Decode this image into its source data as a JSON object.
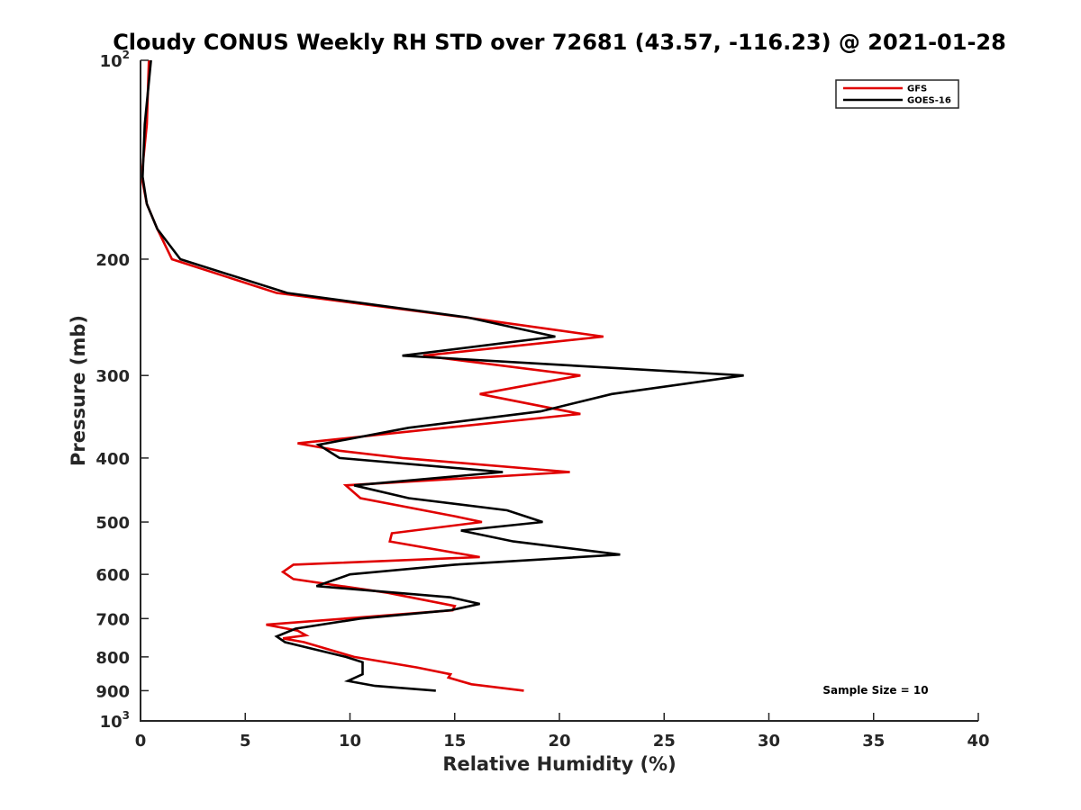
{
  "chart_data": {
    "type": "line",
    "title": "Cloudy CONUS Weekly RH STD over 72681 (43.57, -116.23) @ 2021-01-28",
    "xlabel": "Relative Humidity (%)",
    "ylabel": "Pressure (mb)",
    "xlim": [
      0,
      40
    ],
    "ylim": [
      1000,
      100
    ],
    "y_scale": "log",
    "y_reversed": true,
    "grid": false,
    "legend_position": "top-right",
    "x_ticks": [
      0,
      5,
      10,
      15,
      20,
      25,
      30,
      35,
      40
    ],
    "y_ticks": [
      {
        "value": 100,
        "base": "10",
        "exp": "2"
      },
      {
        "value": 200,
        "label": "200"
      },
      {
        "value": 300,
        "label": "300"
      },
      {
        "value": 400,
        "label": "400"
      },
      {
        "value": 500,
        "label": "500"
      },
      {
        "value": 600,
        "label": "600"
      },
      {
        "value": 700,
        "label": "700"
      },
      {
        "value": 800,
        "label": "800"
      },
      {
        "value": 900,
        "label": "900"
      },
      {
        "value": 1000,
        "base": "10",
        "exp": "3"
      }
    ],
    "series": [
      {
        "name": "GFS",
        "color": "#e00000",
        "points": [
          [
            0.4,
            100
          ],
          [
            0.3,
            125
          ],
          [
            0.05,
            150
          ],
          [
            0.3,
            165
          ],
          [
            0.8,
            180
          ],
          [
            1.5,
            200
          ],
          [
            6.5,
            225
          ],
          [
            15.5,
            245
          ],
          [
            22.1,
            262
          ],
          [
            13.5,
            280
          ],
          [
            21.0,
            300
          ],
          [
            16.2,
            320
          ],
          [
            21.0,
            343
          ],
          [
            13.8,
            362
          ],
          [
            7.5,
            380
          ],
          [
            9.5,
            390
          ],
          [
            12.5,
            400
          ],
          [
            20.5,
            420
          ],
          [
            9.8,
            440
          ],
          [
            10.5,
            460
          ],
          [
            15.0,
            490
          ],
          [
            16.3,
            500
          ],
          [
            12.0,
            520
          ],
          [
            11.9,
            535
          ],
          [
            16.2,
            565
          ],
          [
            7.3,
            580
          ],
          [
            6.8,
            595
          ],
          [
            7.3,
            610
          ],
          [
            11.8,
            640
          ],
          [
            15.0,
            670
          ],
          [
            14.9,
            680
          ],
          [
            6.0,
            715
          ],
          [
            7.5,
            730
          ],
          [
            7.9,
            742
          ],
          [
            6.8,
            750
          ],
          [
            7.8,
            760
          ],
          [
            10.2,
            800
          ],
          [
            13.2,
            830
          ],
          [
            14.8,
            850
          ],
          [
            14.7,
            860
          ],
          [
            15.8,
            880
          ],
          [
            18.3,
            900
          ]
        ]
      },
      {
        "name": "GOES-16",
        "color": "#000000",
        "points": [
          [
            0.5,
            100
          ],
          [
            0.2,
            125
          ],
          [
            0.1,
            150
          ],
          [
            0.3,
            165
          ],
          [
            0.8,
            180
          ],
          [
            1.9,
            200
          ],
          [
            7.0,
            225
          ],
          [
            15.6,
            245
          ],
          [
            19.8,
            262
          ],
          [
            12.5,
            280
          ],
          [
            28.8,
            300
          ],
          [
            22.5,
            320
          ],
          [
            19.1,
            340
          ],
          [
            12.8,
            360
          ],
          [
            8.5,
            382
          ],
          [
            9.5,
            400
          ],
          [
            17.3,
            420
          ],
          [
            10.2,
            440
          ],
          [
            12.8,
            460
          ],
          [
            17.5,
            480
          ],
          [
            19.2,
            500
          ],
          [
            15.3,
            515
          ],
          [
            17.8,
            535
          ],
          [
            22.9,
            560
          ],
          [
            15.0,
            580
          ],
          [
            10.0,
            600
          ],
          [
            8.4,
            625
          ],
          [
            14.8,
            650
          ],
          [
            16.2,
            665
          ],
          [
            14.8,
            680
          ],
          [
            10.5,
            700
          ],
          [
            7.4,
            725
          ],
          [
            6.5,
            745
          ],
          [
            6.9,
            760
          ],
          [
            9.8,
            800
          ],
          [
            10.6,
            815
          ],
          [
            10.6,
            850
          ],
          [
            9.9,
            870
          ],
          [
            11.2,
            885
          ],
          [
            14.1,
            900
          ]
        ]
      }
    ],
    "annotations": [
      {
        "text": "Sample Size = 10"
      }
    ]
  }
}
